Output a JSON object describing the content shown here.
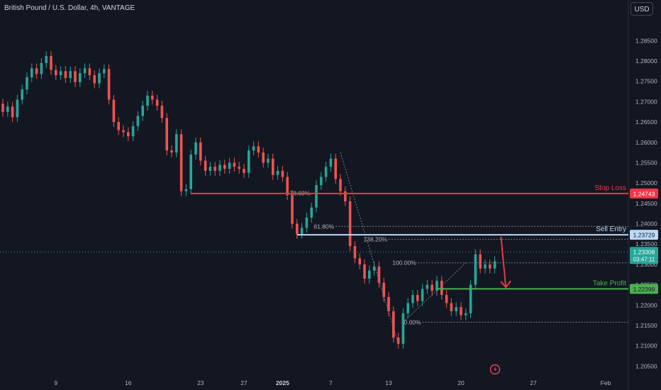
{
  "header": {
    "title": "British Pound / U.S. Dollar, 4h, VANTAGE",
    "currency_button": "USD"
  },
  "colors": {
    "background": "#131722",
    "bull": "#26a69a",
    "bear": "#ef5350",
    "stop_loss": "#f23645",
    "sell_entry": "#bbd9fb",
    "take_profit": "#4caf50",
    "fib": "#787b86",
    "arrow": "#f23645"
  },
  "chart_data": {
    "type": "candlestick",
    "symbol": "British Pound / U.S. Dollar",
    "timeframe": "4h",
    "y_ticks": [
      "1.28500",
      "1.28000",
      "1.27500",
      "1.27000",
      "1.26500",
      "1.26000",
      "1.25500",
      "1.25000",
      "1.24500",
      "1.24000",
      "1.23500",
      "1.23000",
      "1.22500",
      "1.22000",
      "1.21500",
      "1.21000",
      "1.20500"
    ],
    "y_range": [
      1.2035,
      1.2915
    ],
    "x_ticks": [
      {
        "label": "9",
        "bar": 11
      },
      {
        "label": "16",
        "bar": 26
      },
      {
        "label": "23",
        "bar": 41
      },
      {
        "label": "27",
        "bar": 50
      },
      {
        "label": "2025",
        "bar": 58
      },
      {
        "label": "7",
        "bar": 68
      },
      {
        "label": "13",
        "bar": 80
      },
      {
        "label": "20",
        "bar": 95
      },
      {
        "label": "27",
        "bar": 110
      },
      {
        "label": "Feb",
        "bar": 125
      }
    ],
    "closes": [
      1.2675,
      1.2688,
      1.2662,
      1.2705,
      1.273,
      1.276,
      1.2782,
      1.2768,
      1.2795,
      1.2812,
      1.2778,
      1.2765,
      1.2775,
      1.2758,
      1.2775,
      1.2748,
      1.277,
      1.2782,
      1.2765,
      1.2745,
      1.277,
      1.278,
      1.2705,
      1.265,
      1.263,
      1.2625,
      1.2615,
      1.264,
      1.2665,
      1.269,
      1.2715,
      1.2705,
      1.269,
      1.266,
      1.258,
      1.2575,
      1.262,
      1.248,
      1.2485,
      1.257,
      1.26,
      1.2555,
      1.253,
      1.254,
      1.253,
      1.2545,
      1.2535,
      1.255,
      1.254,
      1.2535,
      1.2525,
      1.258,
      1.259,
      1.2575,
      1.255,
      1.256,
      1.252,
      1.253,
      1.2515,
      1.247,
      1.24,
      1.2375,
      1.239,
      1.2415,
      1.244,
      1.2495,
      1.2515,
      1.254,
      1.256,
      1.251,
      1.248,
      1.2455,
      1.2345,
      1.2315,
      1.23,
      1.2265,
      1.2285,
      1.2295,
      1.2255,
      1.222,
      1.2185,
      1.212,
      1.2105,
      1.218,
      1.2205,
      1.2225,
      1.221,
      1.224,
      1.225,
      1.2235,
      1.226,
      1.2225,
      1.2205,
      1.2185,
      1.2195,
      1.2175,
      1.218,
      1.225,
      1.2325,
      1.229,
      1.23,
      1.229,
      1.2308
    ],
    "levels": [
      {
        "name": "Stop Loss",
        "value": 1.24743,
        "label": "1.24743",
        "start_bar": 39
      },
      {
        "name": "Sell Entry",
        "value": 1.23729,
        "label": "1.23729",
        "start_bar": 61
      },
      {
        "name": "Take Profit",
        "value": 1.22399,
        "label": "1.22399",
        "start_bar": 90
      }
    ],
    "last_price": {
      "value": 1.23308,
      "label": "1.23308",
      "countdown": "03:47:11"
    },
    "fibonacci": [
      {
        "label": "78.60%",
        "value": 1.2475
      },
      {
        "label": "61.80%",
        "value": 1.23935
      },
      {
        "label": "138.20%",
        "value": 1.2362
      },
      {
        "label": "100.00%",
        "value": 1.2304
      },
      {
        "label": "0.00%",
        "value": 1.2158
      }
    ],
    "arrow": {
      "from_bar": 103,
      "from_value": 1.2368,
      "to_bar": 104,
      "to_value": 1.2244
    },
    "grid": false
  }
}
